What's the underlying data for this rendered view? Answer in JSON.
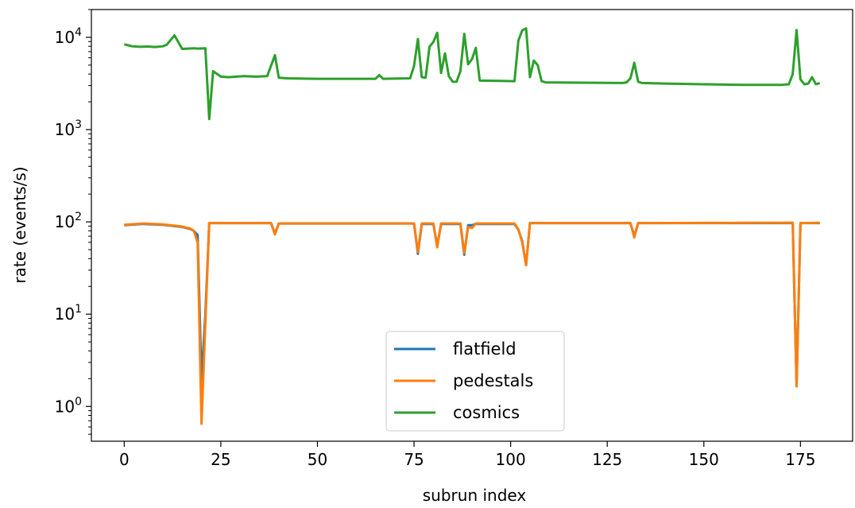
{
  "chart_data": {
    "type": "line",
    "xlabel": "subrun index",
    "ylabel": "rate (events/s)",
    "yscale": "log",
    "xlim": [
      -8.5,
      188.5
    ],
    "ylim": [
      0.42,
      20000
    ],
    "grid": false,
    "legend_position": "lower-center",
    "x_ticks": [
      0,
      25,
      50,
      75,
      100,
      125,
      150,
      175
    ],
    "x_tick_labels": [
      "0",
      "25",
      "50",
      "75",
      "100",
      "125",
      "150",
      "175"
    ],
    "y_ticks": [
      1,
      10,
      100,
      1000,
      10000
    ],
    "y_tick_labels": [
      {
        "base": "10",
        "exp": "0"
      },
      {
        "base": "10",
        "exp": "1"
      },
      {
        "base": "10",
        "exp": "2"
      },
      {
        "base": "10",
        "exp": "3"
      },
      {
        "base": "10",
        "exp": "4"
      }
    ],
    "series": [
      {
        "name": "flatfield",
        "color": "#1f77b4",
        "points": [
          [
            0,
            92
          ],
          [
            5,
            95
          ],
          [
            10,
            93
          ],
          [
            15,
            88
          ],
          [
            17,
            84
          ],
          [
            18,
            80
          ],
          [
            19,
            72
          ],
          [
            20,
            1.9
          ],
          [
            21,
            10
          ],
          [
            22,
            97
          ],
          [
            38,
            97
          ],
          [
            39,
            75
          ],
          [
            40,
            96
          ],
          [
            75,
            96
          ],
          [
            76,
            45
          ],
          [
            77,
            95
          ],
          [
            80,
            95
          ],
          [
            81,
            55
          ],
          [
            82,
            95
          ],
          [
            87,
            95
          ],
          [
            88,
            44
          ],
          [
            89,
            92
          ],
          [
            90,
            92
          ],
          [
            91,
            95
          ],
          [
            101,
            95
          ],
          [
            102,
            82
          ],
          [
            103,
            62
          ],
          [
            104,
            34
          ],
          [
            105,
            97
          ],
          [
            131,
            97
          ],
          [
            132,
            70
          ],
          [
            133,
            97
          ],
          [
            173,
            97
          ],
          [
            174,
            1.65
          ],
          [
            175,
            97
          ],
          [
            180,
            97
          ]
        ]
      },
      {
        "name": "pedestals",
        "color": "#ff7f0e",
        "points": [
          [
            0,
            93
          ],
          [
            5,
            96
          ],
          [
            10,
            94
          ],
          [
            15,
            89
          ],
          [
            17,
            85
          ],
          [
            18,
            80
          ],
          [
            19,
            60
          ],
          [
            20,
            0.65
          ],
          [
            21,
            8
          ],
          [
            22,
            97
          ],
          [
            38,
            97
          ],
          [
            39,
            73
          ],
          [
            40,
            96
          ],
          [
            75,
            96
          ],
          [
            76,
            47
          ],
          [
            77,
            96
          ],
          [
            80,
            96
          ],
          [
            81,
            53
          ],
          [
            82,
            96
          ],
          [
            87,
            96
          ],
          [
            88,
            46
          ],
          [
            89,
            88
          ],
          [
            90,
            86
          ],
          [
            91,
            96
          ],
          [
            101,
            96
          ],
          [
            102,
            83
          ],
          [
            103,
            60
          ],
          [
            104,
            34
          ],
          [
            105,
            97
          ],
          [
            131,
            97
          ],
          [
            132,
            68
          ],
          [
            133,
            97
          ],
          [
            173,
            98
          ],
          [
            174,
            1.65
          ],
          [
            175,
            97
          ],
          [
            180,
            98
          ]
        ]
      },
      {
        "name": "cosmics",
        "color": "#2ca02c",
        "points": [
          [
            0,
            8400
          ],
          [
            2,
            8000
          ],
          [
            4,
            7900
          ],
          [
            6,
            7950
          ],
          [
            8,
            7850
          ],
          [
            10,
            8000
          ],
          [
            11,
            8300
          ],
          [
            13,
            10500
          ],
          [
            15,
            7500
          ],
          [
            18,
            7600
          ],
          [
            19,
            7550
          ],
          [
            21,
            7600
          ],
          [
            22,
            1300
          ],
          [
            23,
            4300
          ],
          [
            25,
            3750
          ],
          [
            27,
            3700
          ],
          [
            29,
            3750
          ],
          [
            31,
            3800
          ],
          [
            34,
            3750
          ],
          [
            37,
            3800
          ],
          [
            39,
            6400
          ],
          [
            40,
            3650
          ],
          [
            42,
            3600
          ],
          [
            50,
            3550
          ],
          [
            65,
            3550
          ],
          [
            66,
            3900
          ],
          [
            67,
            3550
          ],
          [
            74,
            3600
          ],
          [
            75,
            4900
          ],
          [
            76,
            9600
          ],
          [
            77,
            3700
          ],
          [
            78,
            3650
          ],
          [
            79,
            7900
          ],
          [
            80,
            8900
          ],
          [
            81,
            11200
          ],
          [
            82,
            4100
          ],
          [
            83,
            6700
          ],
          [
            84,
            3800
          ],
          [
            85,
            3300
          ],
          [
            86,
            3300
          ],
          [
            87,
            4300
          ],
          [
            88,
            10900
          ],
          [
            89,
            5100
          ],
          [
            90,
            5800
          ],
          [
            91,
            7700
          ],
          [
            92,
            3400
          ],
          [
            101,
            3350
          ],
          [
            102,
            9200
          ],
          [
            103,
            11900
          ],
          [
            104,
            12500
          ],
          [
            105,
            3700
          ],
          [
            106,
            5600
          ],
          [
            107,
            5000
          ],
          [
            108,
            3350
          ],
          [
            109,
            3250
          ],
          [
            129,
            3200
          ],
          [
            130,
            3250
          ],
          [
            131,
            3600
          ],
          [
            132,
            5300
          ],
          [
            133,
            3300
          ],
          [
            134,
            3200
          ],
          [
            140,
            3150
          ],
          [
            150,
            3100
          ],
          [
            160,
            3050
          ],
          [
            170,
            3050
          ],
          [
            172,
            3100
          ],
          [
            173,
            4000
          ],
          [
            174,
            12000
          ],
          [
            175,
            3500
          ],
          [
            176,
            3100
          ],
          [
            177,
            3150
          ],
          [
            178,
            3700
          ],
          [
            179,
            3100
          ],
          [
            180,
            3200
          ]
        ]
      }
    ]
  }
}
